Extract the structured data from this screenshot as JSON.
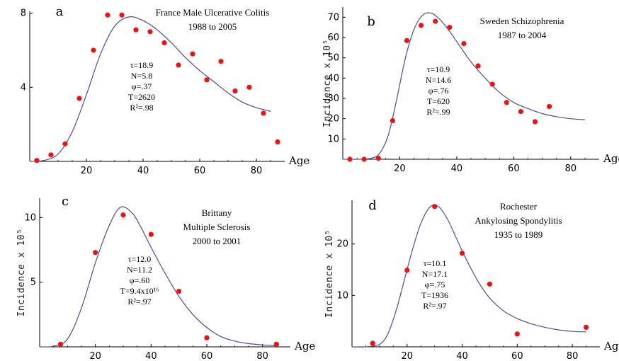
{
  "colors": {
    "curve": "#4a4aa8",
    "points": "#ee1111",
    "axis": "#000000"
  },
  "chart_data": [
    {
      "type": "scatter",
      "panel": "a",
      "title": [
        "France Male Ulcerative Colitis",
        "1988 to 2005"
      ],
      "annotations": [
        "τ=18.9",
        "N=5.8",
        "φ=.37",
        "T=2620",
        "R²=.98"
      ],
      "xlabel": "Age",
      "ylabel": "",
      "xlim": [
        0,
        90
      ],
      "ylim": [
        0,
        8.1
      ],
      "xticks": [
        20,
        40,
        60,
        80
      ],
      "yticks": [
        4,
        8
      ],
      "points": {
        "x": [
          2.5,
          7.5,
          12.5,
          17.5,
          22.5,
          27.5,
          32.5,
          37.5,
          42.5,
          47.5,
          52.5,
          57.5,
          62.5,
          67.5,
          72.5,
          77.5,
          82.5,
          87.5
        ],
        "y": [
          0.05,
          0.35,
          0.95,
          3.4,
          6.0,
          7.9,
          7.9,
          7.1,
          7.0,
          6.4,
          5.2,
          5.8,
          4.4,
          5.4,
          3.8,
          4.0,
          2.6,
          1.05
        ]
      },
      "curve": {
        "x": [
          0,
          5,
          10,
          15,
          20,
          25,
          30,
          35,
          40,
          45,
          50,
          55,
          60,
          65,
          70,
          75,
          80,
          85
        ],
        "y": [
          0,
          0.05,
          0.4,
          1.6,
          3.6,
          5.8,
          7.3,
          7.8,
          7.6,
          7.1,
          6.4,
          5.6,
          4.9,
          4.3,
          3.7,
          3.2,
          2.9,
          2.7
        ]
      }
    },
    {
      "type": "scatter",
      "panel": "b",
      "title": [
        "Sweden Schizophrenia",
        "1987 to 2004"
      ],
      "annotations": [
        "τ=10.9",
        "N=14.6",
        "φ=.76",
        "T=620",
        "R²=.99"
      ],
      "xlabel": "Age",
      "ylabel": "Incidence x 10⁵",
      "xlim": [
        0,
        90
      ],
      "ylim": [
        0,
        75
      ],
      "xticks": [
        20,
        40,
        60,
        80
      ],
      "yticks": [
        10,
        20,
        30,
        40,
        50,
        60,
        70
      ],
      "points": {
        "x": [
          2.5,
          7.5,
          12.5,
          17.5,
          22.5,
          27.5,
          32.5,
          37.5,
          42.5,
          47.5,
          52.5,
          57.5,
          62.5,
          67.5,
          72.5
        ],
        "y": [
          0,
          0,
          0.5,
          19,
          58.5,
          66,
          68,
          65,
          57,
          46,
          37,
          28,
          23.5,
          18.5,
          26
        ]
      },
      "curve": {
        "x": [
          0,
          5,
          10,
          13,
          16,
          19,
          22,
          25,
          28,
          31,
          34,
          37,
          40,
          45,
          50,
          55,
          60,
          65,
          70,
          75,
          80,
          85
        ],
        "y": [
          0,
          0,
          0.5,
          3,
          12,
          30,
          50,
          64,
          71,
          72,
          69,
          64,
          58,
          48,
          40,
          33,
          28,
          25,
          22.5,
          21,
          20,
          19.5
        ]
      }
    },
    {
      "type": "scatter",
      "panel": "c",
      "title": [
        "Brittany",
        "Multiple Sclerosis",
        "2000 to 2001"
      ],
      "annotations": [
        "τ=12.0",
        "N=11.2",
        "φ=.60",
        "T=9.4x10¹⁶",
        "R²=.97"
      ],
      "xlabel": "Age",
      "ylabel": "Incidence x 10⁵",
      "xlim": [
        0,
        90
      ],
      "ylim": [
        0,
        11.5
      ],
      "xticks": [
        20,
        40,
        60,
        80
      ],
      "yticks": [
        5,
        10
      ],
      "points": {
        "x": [
          7.5,
          20,
          30,
          40,
          50,
          60,
          85
        ],
        "y": [
          0.2,
          7.3,
          10.2,
          8.7,
          4.3,
          0.7,
          0.2
        ]
      },
      "curve": {
        "x": [
          0,
          5,
          10,
          15,
          20,
          25,
          29,
          33,
          36,
          40,
          45,
          50,
          55,
          60,
          65,
          70,
          75,
          80,
          85
        ],
        "y": [
          0,
          0.05,
          0.6,
          3.0,
          6.5,
          9.4,
          10.8,
          10.4,
          9.4,
          7.7,
          5.7,
          3.9,
          2.5,
          1.5,
          0.8,
          0.45,
          0.25,
          0.15,
          0.1
        ]
      }
    },
    {
      "type": "scatter",
      "panel": "d",
      "title": [
        "Rochester",
        "Ankylosing Spondylitis",
        "1935 to 1989"
      ],
      "annotations": [
        "τ=10.1",
        "N=17.1",
        "φ=.75",
        "T=1936",
        "R²=.97"
      ],
      "xlabel": "Age",
      "ylabel": "Incidence x 10⁵",
      "xlim": [
        0,
        90
      ],
      "ylim": [
        0,
        28.5
      ],
      "xticks": [
        20,
        40,
        60,
        80
      ],
      "yticks": [
        10,
        20
      ],
      "points": {
        "x": [
          7.5,
          20,
          30,
          40,
          50,
          60,
          85
        ],
        "y": [
          0.7,
          14.9,
          27.3,
          18.2,
          12.2,
          2.5,
          3.8
        ]
      },
      "curve": {
        "x": [
          0,
          5,
          10,
          13,
          16,
          19,
          22,
          25,
          28,
          30,
          32,
          35,
          38,
          42,
          46,
          50,
          55,
          60,
          65,
          70,
          75,
          80,
          85
        ],
        "y": [
          0,
          0,
          0.5,
          2.5,
          7,
          13,
          19,
          24,
          27,
          27.5,
          27,
          24.5,
          21,
          16.5,
          12.5,
          9.5,
          7,
          5.5,
          4.5,
          3.8,
          3.3,
          3.0,
          2.9
        ]
      }
    }
  ]
}
